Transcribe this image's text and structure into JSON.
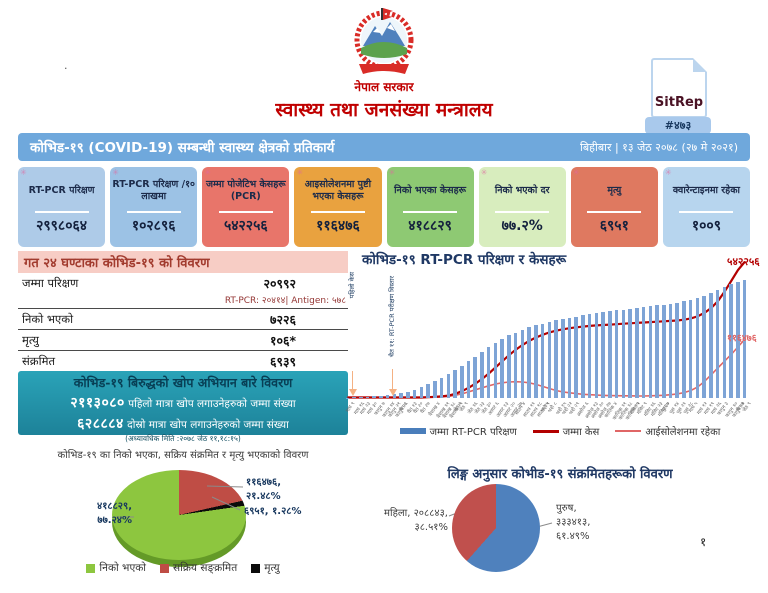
{
  "header": {
    "government": "नेपाल सरकार",
    "ministry": "स्वास्थ्य तथा जनसंख्या मन्त्रालय",
    "sitrep_label": "SitRep",
    "sitrep_number": "#४७३"
  },
  "title_bar": {
    "title": "कोभिड-१९  (COVID-19) सम्बन्धी स्वास्थ्य क्षेत्रको प्रतिकार्य",
    "date": "बिहीबार | १३ जेठ २०७८ (२७ मे २०२१)"
  },
  "stat_cards": [
    {
      "label": "RT-PCR परिक्षण",
      "value": "२९९८०६४",
      "bg": "#aecbe8"
    },
    {
      "label": "RT-PCR परिक्षण /१० लाखमा",
      "value": "१०२८९६",
      "bg": "#9cc2e5"
    },
    {
      "label": "जम्मा पोजेटिभ केसहरू (PCR)",
      "value": "५४२२५६",
      "bg": "#e8756a"
    },
    {
      "label": "आइसोलेशनमा पुष्टी भएका केसहरू",
      "value": "११६४७६",
      "bg": "#e9a23f"
    },
    {
      "label": "निको भएका केसहरू",
      "value": "४१८८२९",
      "bg": "#8ec973"
    },
    {
      "label": "निको भएको दर",
      "value": "७७.२%",
      "bg": "#d8edbe"
    },
    {
      "label": "मृत्यु",
      "value": "६९५१",
      "bg": "#df7960"
    },
    {
      "label": "क्वारेन्टाइनमा रहेका",
      "value": "१००९",
      "bg": "#b7d5ee"
    }
  ],
  "last24": {
    "header": "गत २४ घण्टाका कोभिड-१९ को विवरण",
    "rows": [
      {
        "label": "जम्मा परिक्षण",
        "value": "२०९९२",
        "sub": "RT-PCR: २०४१४| Antigen: ५७८"
      },
      {
        "label": "निको भएको",
        "value": "७२२६",
        "sub": ""
      },
      {
        "label": "मृत्यु",
        "value": "१०६*",
        "sub": ""
      },
      {
        "label": "संक्रमित",
        "value": "६९३९",
        "sub": "RT-PCR:६७३१ | Antigen: २०८"
      }
    ],
    "footnote": "* नेपाली सेनाद्वारा विभिन्न नितिमा शव व्यवस्थापन गरेका समेत"
  },
  "vaccination": {
    "header": "कोभिड-१९ बिरुद्धको खोप अभियान बारे विवरण",
    "first_dose_value": "२११३०८०",
    "first_dose_text": " पहिलो मात्रा खोप लगाउनेहरुको जम्मा संख्या",
    "second_dose_value": "६२८८८४",
    "second_dose_text": " दोस्रो मात्रा खोप लगाउनेहरुको जम्मा संख्या",
    "updated": "(अध्यावधिक मिति :२०७८ जेठ ११,१८:१५)"
  },
  "page_number": "१",
  "chart_data": [
    {
      "type": "bar",
      "title": "कोभिड-१९  RT-PCR परिक्षण र केसहरू",
      "legend": [
        "जम्मा RT-PCR परिक्षण",
        "जम्मा केस",
        "आईसोलेशनमा रहेका"
      ],
      "annotations": [
        "पहिलो केस",
        "चैत ११: RT-PCR परीक्षण विस्तार"
      ],
      "end_labels": {
        "cases": "५४२२५६",
        "isolation": "११६४७६"
      },
      "totals": {
        "tests": 2998064,
        "cases": 542256,
        "isolation": 116476
      },
      "colors": {
        "bar": "#7ea4d6",
        "cases": "#b30000",
        "isolation": "#e06666"
      },
      "x_labels": [
        "माघ ९",
        "माघ १६",
        "माघ २३",
        "माघ ३०",
        "फागुन ७",
        "फागुन १४",
        "फागुन २१",
        "फागुन २८",
        "चैत ६",
        "चैत १३",
        "चैत २०",
        "चैत २७",
        "बैशाख ४",
        "बैशाख ११",
        "बैशाख १८",
        "बैशाख २५",
        "जेठ २",
        "जेठ ९",
        "जेठ १६",
        "जेठ २३",
        "जेठ ३०",
        "असार ६",
        "असार १३",
        "असार २०",
        "असार २७",
        "साउन ४",
        "साउन ११",
        "साउन १८",
        "साउन २५",
        "भदौ १",
        "भदौ ८",
        "भदौ १५",
        "भदौ २२",
        "भदौ २९",
        "असोज ६",
        "असोज १३",
        "असोज २०",
        "असोज २७",
        "कात्तिक ४",
        "कात्तिक ११",
        "कात्तिक १८",
        "कात्तिक २५",
        "मंसिर २",
        "मंसिर ९",
        "मंसिर १६",
        "मंसिर २३",
        "मंसिर ३०",
        "पुस ७",
        "पुस १४",
        "पुस २१",
        "पुस २८",
        "माघ ५",
        "माघ १२",
        "माघ १९",
        "माघ २६",
        "फागुन ३",
        "फागुन १०",
        "फागुन १७",
        "चैत २",
        "जेठ ९"
      ],
      "bars_norm": [
        0.003,
        0.005,
        0.008,
        0.012,
        0.016,
        0.02,
        0.026,
        0.033,
        0.042,
        0.055,
        0.07,
        0.09,
        0.115,
        0.14,
        0.17,
        0.2,
        0.235,
        0.27,
        0.31,
        0.35,
        0.39,
        0.43,
        0.465,
        0.5,
        0.53,
        0.555,
        0.578,
        0.598,
        0.615,
        0.63,
        0.645,
        0.658,
        0.67,
        0.68,
        0.69,
        0.7,
        0.71,
        0.718,
        0.726,
        0.734,
        0.742,
        0.75,
        0.757,
        0.764,
        0.771,
        0.778,
        0.785,
        0.792,
        0.8,
        0.808,
        0.818,
        0.83,
        0.845,
        0.865,
        0.89,
        0.915,
        0.94,
        0.962,
        0.982,
        1.0
      ],
      "cases_norm": [
        0.004,
        0.004,
        0.004,
        0.004,
        0.004,
        0.004,
        0.004,
        0.004,
        0.004,
        0.004,
        0.004,
        0.004,
        0.006,
        0.008,
        0.012,
        0.018,
        0.03,
        0.05,
        0.075,
        0.105,
        0.14,
        0.18,
        0.225,
        0.27,
        0.315,
        0.355,
        0.39,
        0.42,
        0.445,
        0.465,
        0.482,
        0.495,
        0.505,
        0.513,
        0.52,
        0.525,
        0.53,
        0.534,
        0.537,
        0.54,
        0.543,
        0.546,
        0.549,
        0.552,
        0.555,
        0.558,
        0.561,
        0.564,
        0.567,
        0.57,
        0.576,
        0.585,
        0.6,
        0.625,
        0.66,
        0.71,
        0.78,
        0.86,
        0.94,
        1.0
      ],
      "isolation_norm": [
        0.006,
        0.006,
        0.006,
        0.006,
        0.006,
        0.006,
        0.006,
        0.006,
        0.006,
        0.006,
        0.006,
        0.006,
        0.006,
        0.006,
        0.008,
        0.012,
        0.02,
        0.03,
        0.045,
        0.06,
        0.075,
        0.09,
        0.103,
        0.112,
        0.118,
        0.12,
        0.118,
        0.112,
        0.1,
        0.085,
        0.07,
        0.055,
        0.045,
        0.038,
        0.032,
        0.027,
        0.024,
        0.021,
        0.019,
        0.018,
        0.017,
        0.016,
        0.016,
        0.015,
        0.015,
        0.016,
        0.018,
        0.02,
        0.024,
        0.03,
        0.04,
        0.055,
        0.08,
        0.12,
        0.17,
        0.22,
        0.27,
        0.32,
        0.375,
        0.43
      ]
    },
    {
      "type": "pie",
      "title": "कोभिड-१९ का निको भएका, सक्रिय संक्रमित र मृत्यु भएकाको विवरण",
      "slices": [
        {
          "label": "सक्रिय सङ्क्रमित",
          "value": 116476,
          "pct": 21.48,
          "color": "#bf4d45"
        },
        {
          "label": "मृत्यु",
          "value": 6951,
          "pct": 1.28,
          "color": "#0b0b0b"
        },
        {
          "label": "निको भएको",
          "value": 418829,
          "pct": 77.24,
          "color": "#8dc63f"
        }
      ],
      "legend": [
        {
          "label": "निको भएको",
          "color": "#8dc63f"
        },
        {
          "label": "सक्रिय सङ्क्रमित",
          "color": "#bf4d45"
        },
        {
          "label": "मृत्यु",
          "color": "#0b0b0b"
        }
      ],
      "label_active": "११६४७६,\n२१.४८%",
      "label_recovered": "४१८८२९,\n७७.२४%",
      "label_death": "६९५१, १.२८%"
    },
    {
      "type": "pie",
      "title": "लिङ्ग अनुसार कोभीड-१९ संक्रमितहरूको विवरण",
      "slices": [
        {
          "label": "पुरुष",
          "value": 333413,
          "pct": 61.49,
          "color": "#4f81bd"
        },
        {
          "label": "महिला",
          "value": 208843,
          "pct": 38.51,
          "color": "#c0504d"
        }
      ],
      "label_female": "महिला, २०८८४३,\n३८.५१%",
      "label_male": "पुरुष,\n३३३४१३,\n६१.४९%"
    }
  ]
}
